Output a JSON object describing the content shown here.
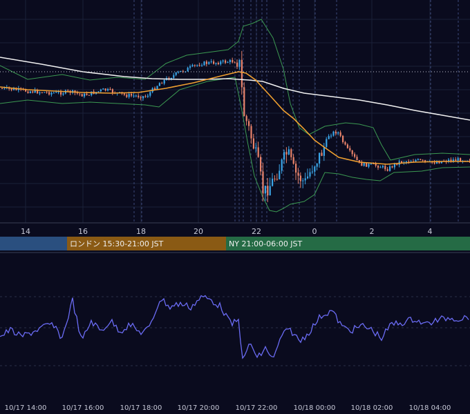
{
  "chart_data": [
    {
      "type": "candlestick",
      "title": "",
      "x_ticks": [
        "14",
        "16",
        "18",
        "20",
        "22",
        "0",
        "2",
        "4"
      ],
      "overlays": [
        {
          "kind": "moving-average",
          "color": "#f0a030"
        },
        {
          "kind": "moving-average",
          "color": "#f2f2f2"
        },
        {
          "kind": "bollinger-bands",
          "color": "#3c9a52"
        }
      ],
      "grid": true,
      "colors": {
        "up": "#3aa6e8",
        "down": "#e8836a"
      }
    },
    {
      "type": "sessions",
      "sessions": [
        {
          "label": "",
          "color": "#2a4f7f"
        },
        {
          "label": "ロンドン 15:30-21:00 JST",
          "color": "#8a5a14"
        },
        {
          "label": "NY 21:00-06:00 JST",
          "color": "#256b45"
        }
      ]
    },
    {
      "type": "line",
      "title": "",
      "x_ticks": [
        "10/17 14:00",
        "10/17 16:00",
        "10/17 18:00",
        "10/17 20:00",
        "10/17 22:00",
        "10/18 00:00",
        "10/18 02:00",
        "10/18 04:00"
      ],
      "color": "#6b6cf5",
      "grid": true
    }
  ]
}
